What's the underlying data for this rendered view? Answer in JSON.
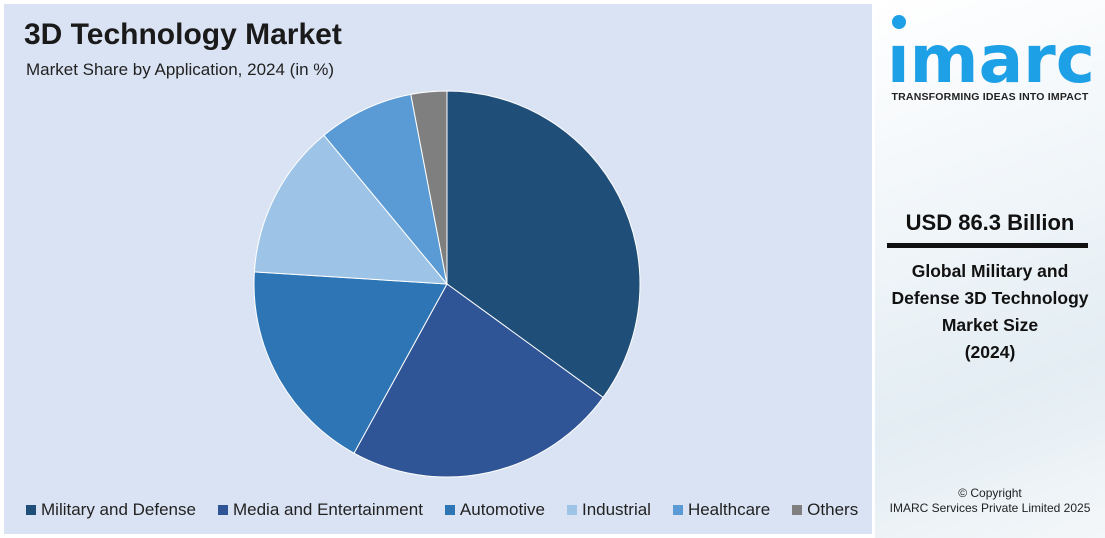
{
  "chart_data": {
    "type": "pie",
    "title": "3D Technology Market",
    "subtitle": "Market Share by Application, 2024 (in %)",
    "categories": [
      "Military and Defense",
      "Media and Entertainment",
      "Automotive",
      "Industrial",
      "Healthcare",
      "Others"
    ],
    "values": [
      35,
      23,
      18,
      13,
      8,
      3
    ],
    "colors": [
      "#1f4e79",
      "#2f5597",
      "#2e75b6",
      "#9dc3e6",
      "#5b9bd5",
      "#7f7f7f"
    ],
    "legend_placement": "bottom"
  },
  "side_panel": {
    "logo_text": "imarc",
    "logo_color": "#1ea0e6",
    "tagline": "TRANSFORMING IDEAS INTO IMPACT",
    "value": "USD 86.3 Billion",
    "description_lines": [
      "Global Military and",
      "Defense 3D Technology",
      "Market Size",
      "(2024)"
    ],
    "copyright_lines": [
      "© Copyright",
      "IMARC Services Private Limited 2025"
    ]
  }
}
